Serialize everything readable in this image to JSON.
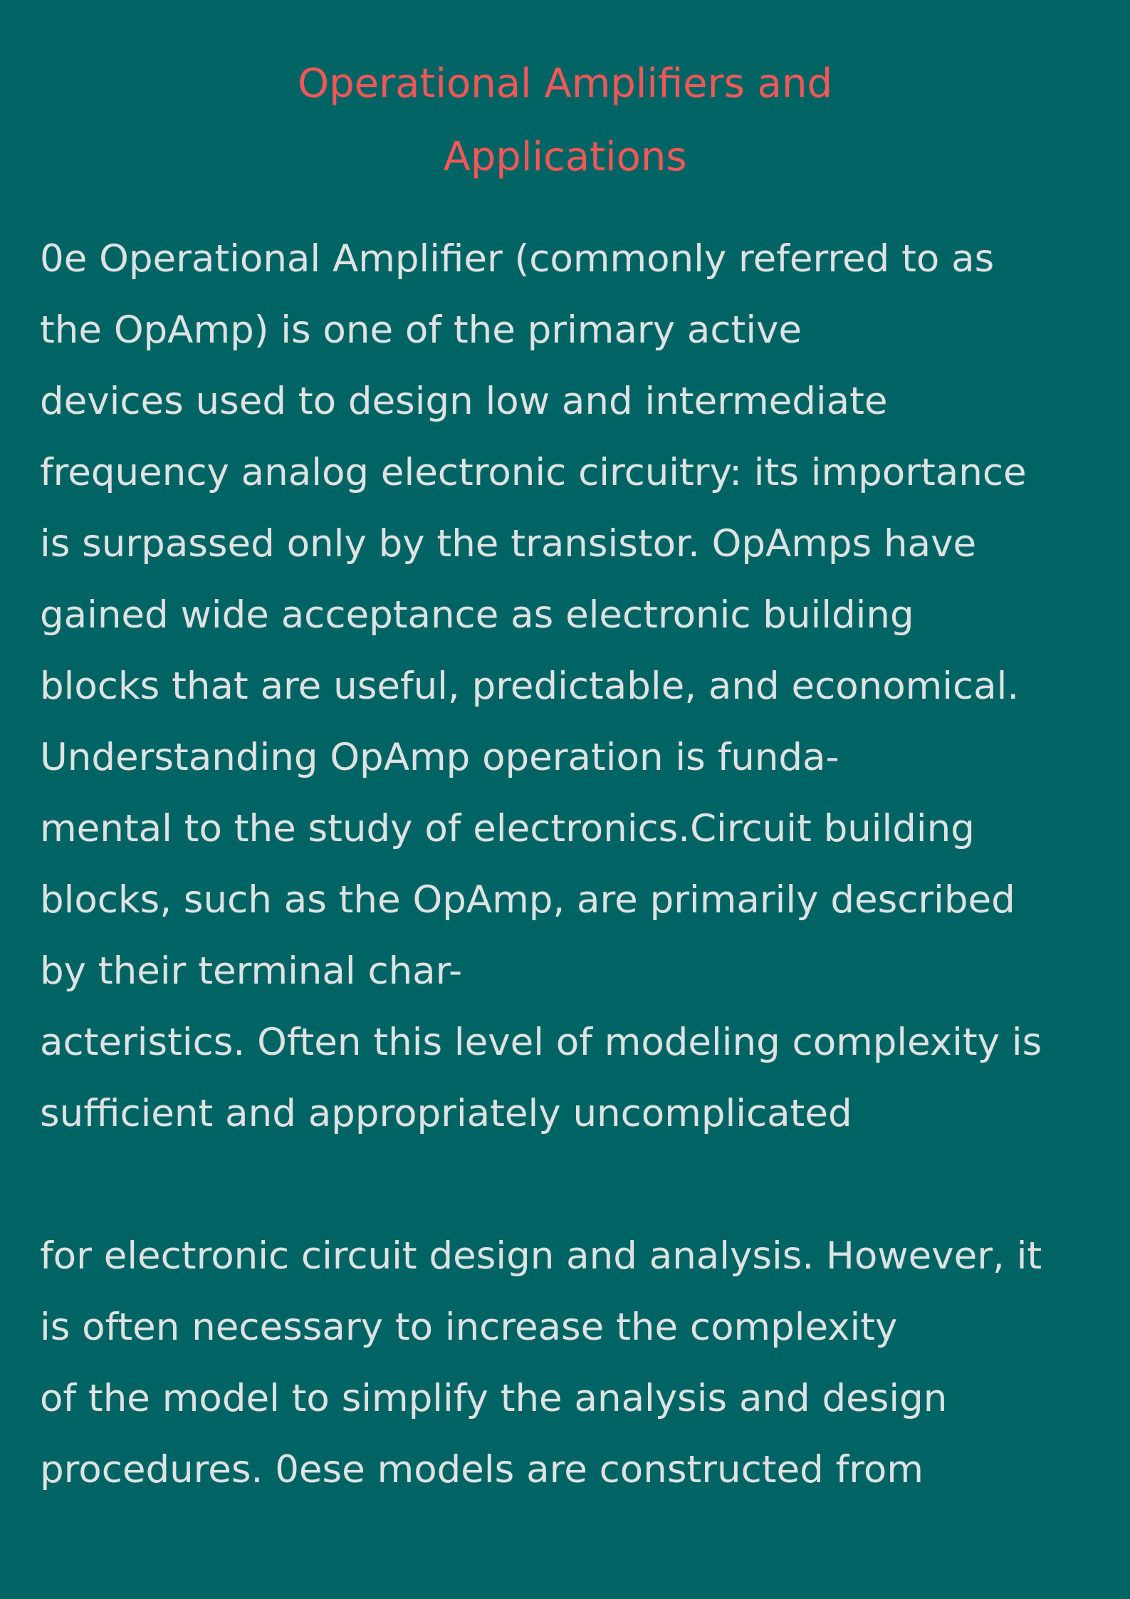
{
  "document": {
    "title_lines": [
      "Operational Amplifiers and",
      "Applications"
    ],
    "body_lines": [
      "0e Operational Amplifier (commonly referred to as",
      "the OpAmp) is one of the primary active",
      "devices used to design low and intermediate",
      "frequency analog electronic circuitry: its importance",
      "is surpassed only by the transistor. OpAmps have",
      "gained wide acceptance as electronic building",
      "blocks that are useful, predictable, and economical.",
      "Understanding OpAmp operation is funda-",
      "mental to the study of electronics.Circuit building",
      "blocks, such as the OpAmp, are primarily described",
      "by their terminal char-",
      "acteristics. Often this level of modeling complexity is",
      "sufficient and appropriately uncomplicated",
      "",
      "for electronic circuit design and analysis. However, it",
      "is often necessary to increase the complexity",
      "of the model to simplify the analysis and design",
      "procedures. 0ese models are constructed from"
    ]
  },
  "colors": {
    "background": "#006464",
    "title": "#f25757",
    "body_text": "#dfe2e2"
  }
}
